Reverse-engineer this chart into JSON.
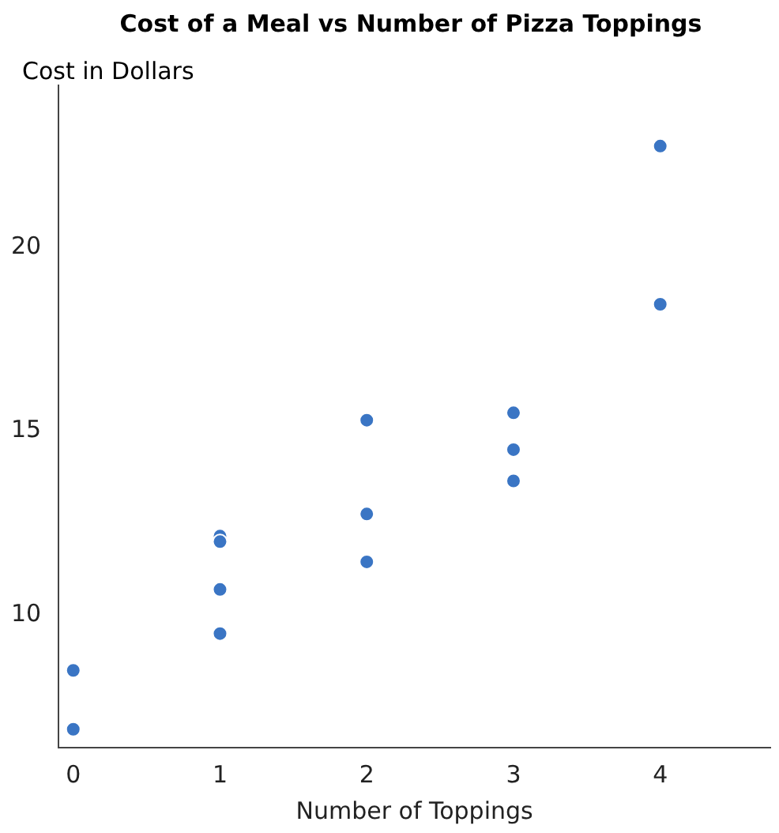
{
  "chart_data": {
    "type": "scatter",
    "title": "Cost of a Meal vs Number of Pizza Toppings",
    "xlabel": "Number of Toppings",
    "ylabel": "Cost in Dollars",
    "series": [
      {
        "color": "#3a75c4",
        "x": [
          0,
          0,
          1,
          1,
          1,
          1,
          2,
          2,
          2,
          3,
          3,
          3,
          4,
          4
        ],
        "values": [
          8.5,
          6.9,
          12.15,
          12.0,
          10.7,
          9.5,
          15.3,
          12.75,
          11.45,
          15.5,
          14.5,
          13.65,
          22.75,
          18.45
        ]
      }
    ],
    "xlim": [
      -0.1,
      4.75
    ],
    "xticks": [
      0,
      1,
      2,
      3,
      4
    ],
    "ylim": [
      6.4,
      24.4
    ],
    "yticks": [
      10,
      15,
      20
    ],
    "grid": false,
    "legend": false,
    "marker": "circle"
  }
}
